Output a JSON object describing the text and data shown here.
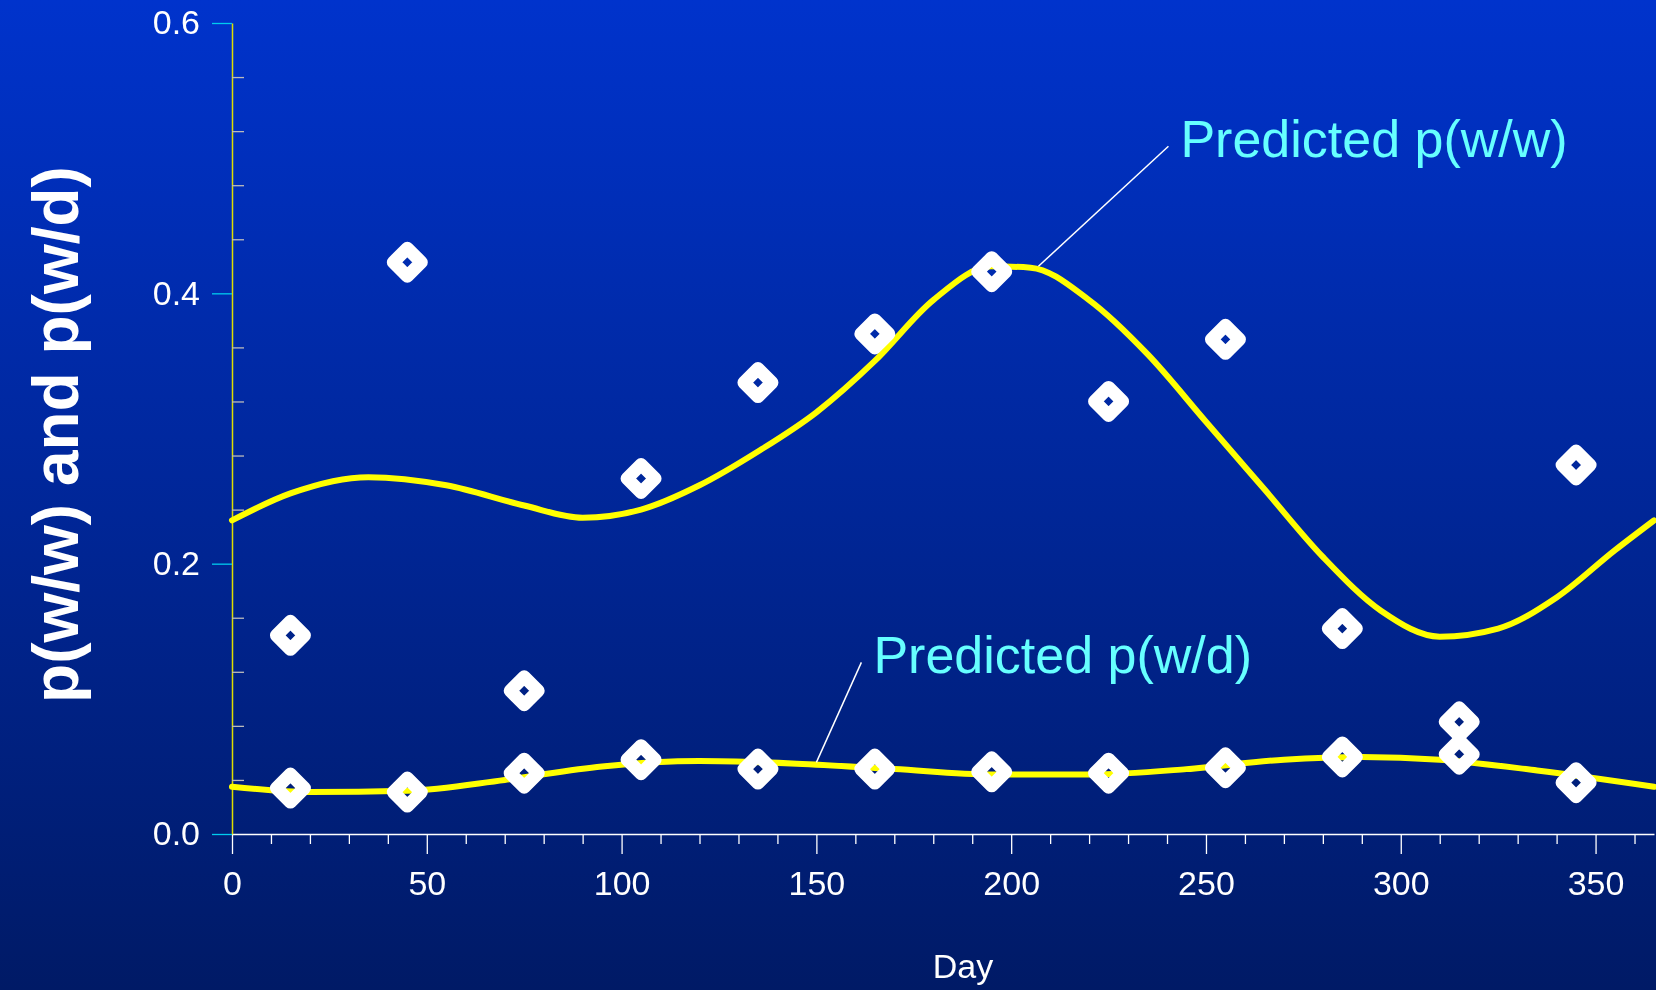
{
  "chart_data": {
    "type": "scatter",
    "xlabel": "Day",
    "ylabel": "p(w/w) and p(w/d)",
    "xlim": [
      0,
      365
    ],
    "ylim": [
      0,
      0.6
    ],
    "xticks": [
      {
        "value": 0,
        "label": "0"
      },
      {
        "value": 10,
        "label": null
      },
      {
        "value": 20,
        "label": null
      },
      {
        "value": 30,
        "label": null
      },
      {
        "value": 40,
        "label": null
      },
      {
        "value": 50,
        "label": "50"
      },
      {
        "value": 60,
        "label": null
      },
      {
        "value": 70,
        "label": null
      },
      {
        "value": 80,
        "label": null
      },
      {
        "value": 90,
        "label": null
      },
      {
        "value": 100,
        "label": "100"
      },
      {
        "value": 110,
        "label": null
      },
      {
        "value": 120,
        "label": null
      },
      {
        "value": 130,
        "label": null
      },
      {
        "value": 140,
        "label": null
      },
      {
        "value": 150,
        "label": "150"
      },
      {
        "value": 160,
        "label": null
      },
      {
        "value": 170,
        "label": null
      },
      {
        "value": 180,
        "label": null
      },
      {
        "value": 190,
        "label": null
      },
      {
        "value": 200,
        "label": "200"
      },
      {
        "value": 210,
        "label": null
      },
      {
        "value": 220,
        "label": null
      },
      {
        "value": 230,
        "label": null
      },
      {
        "value": 240,
        "label": null
      },
      {
        "value": 250,
        "label": "250"
      },
      {
        "value": 260,
        "label": null
      },
      {
        "value": 270,
        "label": null
      },
      {
        "value": 280,
        "label": null
      },
      {
        "value": 290,
        "label": null
      },
      {
        "value": 300,
        "label": "300"
      },
      {
        "value": 310,
        "label": null
      },
      {
        "value": 320,
        "label": null
      },
      {
        "value": 330,
        "label": null
      },
      {
        "value": 340,
        "label": null
      },
      {
        "value": 350,
        "label": "350"
      },
      {
        "value": 360,
        "label": null
      }
    ],
    "yticks": [
      {
        "value": 0,
        "label": "0.0"
      },
      {
        "value": 0.04,
        "label": null
      },
      {
        "value": 0.08,
        "label": null
      },
      {
        "value": 0.12,
        "label": null
      },
      {
        "value": 0.16,
        "label": null
      },
      {
        "value": 0.2,
        "label": "0.2"
      },
      {
        "value": 0.24,
        "label": null
      },
      {
        "value": 0.28,
        "label": null
      },
      {
        "value": 0.32,
        "label": null
      },
      {
        "value": 0.36,
        "label": null
      },
      {
        "value": 0.4,
        "label": "0.4"
      },
      {
        "value": 0.44,
        "label": null
      },
      {
        "value": 0.48,
        "label": null
      },
      {
        "value": 0.52,
        "label": null
      },
      {
        "value": 0.56,
        "label": null
      },
      {
        "value": 0.6,
        "label": "0.6"
      }
    ],
    "grid": false,
    "marker": "diamond",
    "series": [
      {
        "type": "line",
        "color": "#ffff00",
        "marker": "none",
        "x": [
          0,
          15,
          35,
          55,
          75,
          90,
          105,
          120,
          135,
          150,
          165,
          180,
          195,
          205,
          220,
          235,
          250,
          265,
          280,
          295,
          310,
          325,
          340,
          355,
          365
        ],
        "values": [
          0.232,
          0.252,
          0.264,
          0.258,
          0.243,
          0.234,
          0.24,
          0.258,
          0.283,
          0.312,
          0.35,
          0.395,
          0.42,
          0.419,
          0.395,
          0.355,
          0.305,
          0.255,
          0.205,
          0.165,
          0.146,
          0.152,
          0.175,
          0.21,
          0.232
        ]
      },
      {
        "type": "line",
        "color": "#ffff00",
        "marker": "none",
        "x": [
          0,
          20,
          45,
          70,
          95,
          120,
          145,
          170,
          195,
          220,
          245,
          270,
          290,
          310,
          335,
          365
        ],
        "values": [
          0.035,
          0.031,
          0.032,
          0.04,
          0.05,
          0.054,
          0.052,
          0.048,
          0.044,
          0.044,
          0.048,
          0.055,
          0.057,
          0.055,
          0.047,
          0.035
        ]
      },
      {
        "type": "scatter",
        "color": "#ffffff",
        "x": [
          15,
          45,
          75,
          105,
          135,
          165,
          195,
          225,
          255,
          285,
          315,
          345
        ],
        "values": [
          0.147,
          0.423,
          0.106,
          0.263,
          0.334,
          0.37,
          0.416,
          0.32,
          0.366,
          0.152,
          0.083,
          0.273
        ]
      },
      {
        "type": "scatter",
        "color": "#ffffff",
        "x": [
          15,
          45,
          75,
          105,
          135,
          165,
          195,
          225,
          255,
          285,
          315,
          345
        ],
        "values": [
          0.034,
          0.031,
          0.045,
          0.055,
          0.048,
          0.048,
          0.046,
          0.045,
          0.049,
          0.057,
          0.059,
          0.038
        ]
      }
    ],
    "annotations": [
      {
        "text": "Predicted p(w/w)",
        "x": 207,
        "y": 0.42
      },
      {
        "text": "Predicted p(w/d)",
        "x": 150,
        "y": 0.053
      }
    ]
  }
}
